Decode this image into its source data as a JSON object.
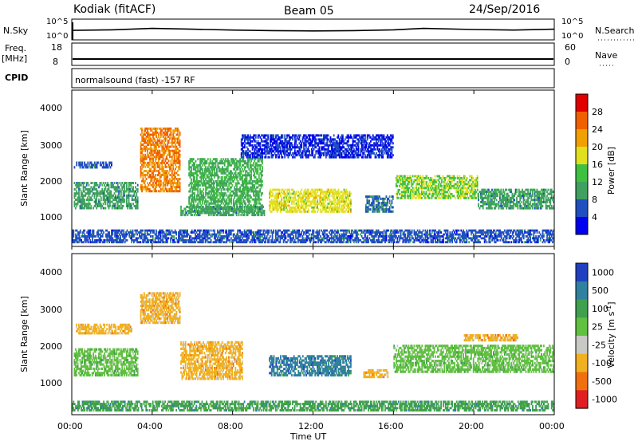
{
  "header": {
    "station": "Kodiak (fitACF)",
    "beam": "Beam 05",
    "date": "24/Sep/2016"
  },
  "nsky_panel": {
    "left_label": "N.Sky",
    "left_ticks": [
      "10^5",
      "10^0"
    ],
    "right_label": "N.Search",
    "right_ticks": [
      "10^5",
      "10^0"
    ]
  },
  "freq_panel": {
    "left_label_line1": "Freq.",
    "left_label_line2": "[MHz]",
    "left_ticks": [
      "18",
      "8"
    ],
    "right_label": "Nave",
    "right_ticks": [
      "60",
      "0"
    ]
  },
  "cpid_panel": {
    "label": "CPID",
    "program": "normalsound (fast) -157 RF"
  },
  "power_panel": {
    "ylabel": "Slant Range [km]",
    "y_ticks": [
      "4000",
      "3000",
      "2000",
      "1000"
    ],
    "colorbar_label": "Power [dB]",
    "colorbar_ticks": [
      "28",
      "24",
      "20",
      "16",
      "12",
      "8",
      "4"
    ],
    "colors": [
      "#0000f0",
      "#2050c0",
      "#40a060",
      "#40c040",
      "#e0e020",
      "#f0a000",
      "#f06000",
      "#e00000"
    ]
  },
  "velocity_panel": {
    "ylabel": "Slant Range [km]",
    "y_ticks": [
      "4000",
      "3000",
      "2000",
      "1000"
    ],
    "colorbar_label": "Velocity [m s",
    "colorbar_label_sup": "-1",
    "colorbar_label_end": "]",
    "colorbar_ticks": [
      "1000",
      "500",
      "100",
      "25",
      "-25",
      "-100",
      "-500",
      "-1000"
    ],
    "colors": [
      "#2040c0",
      "#3080a0",
      "#40a050",
      "#60c040",
      "#c8c8c4",
      "#f0b020",
      "#f07010",
      "#e02020"
    ]
  },
  "x_axis": {
    "ticks": [
      "00:00",
      "04:00",
      "08:00",
      "12:00",
      "16:00",
      "20:00",
      "00:00"
    ],
    "label": "Time UT"
  },
  "chart_data": {
    "type": "heatmap",
    "title": "Kodiak (fitACF)",
    "subtitle": "Beam 05",
    "date": "24/Sep/2016",
    "x_range_hours_ut": [
      0,
      24
    ],
    "y_range_km": [
      0,
      4600
    ],
    "panels": [
      {
        "name": "Power",
        "unit": "dB",
        "colorbar": [
          4,
          8,
          12,
          16,
          20,
          24,
          28
        ],
        "regions": [
          {
            "t": [
              0.1,
              3.3
            ],
            "r": [
              1100,
              1900
            ],
            "v": 12
          },
          {
            "t": [
              0.1,
              2.0
            ],
            "r": [
              2300,
              2500
            ],
            "v": 8
          },
          {
            "t": [
              3.4,
              5.4
            ],
            "r": [
              1600,
              3500
            ],
            "v": 26
          },
          {
            "t": [
              5.8,
              9.5
            ],
            "r": [
              1000,
              2600
            ],
            "v": 14
          },
          {
            "t": [
              5.4,
              9.6
            ],
            "r": [
              900,
              1200
            ],
            "v": 12
          },
          {
            "t": [
              9.8,
              13.9
            ],
            "r": [
              1000,
              1700
            ],
            "v": 20
          },
          {
            "t": [
              14.6,
              16.0
            ],
            "r": [
              1000,
              1500
            ],
            "v": 10
          },
          {
            "t": [
              16.1,
              20.2
            ],
            "r": [
              1400,
              2100
            ],
            "v": 18
          },
          {
            "t": [
              20.2,
              24.0
            ],
            "r": [
              1100,
              1700
            ],
            "v": 12
          },
          {
            "t": [
              8.4,
              16.0
            ],
            "r": [
              2600,
              3300
            ],
            "v": 6
          },
          {
            "t": [
              0.0,
              24.0
            ],
            "r": [
              100,
              500
            ],
            "v": 8
          }
        ]
      },
      {
        "name": "Velocity",
        "unit": "m s-1",
        "colorbar": [
          1000,
          500,
          100,
          25,
          -25,
          -100,
          -500,
          -1000
        ],
        "regions": [
          {
            "t": [
              0.1,
              3.3
            ],
            "r": [
              1100,
              1900
            ],
            "v": 0
          },
          {
            "t": [
              0.2,
              3.0
            ],
            "r": [
              2300,
              2600
            ],
            "v": -300
          },
          {
            "t": [
              3.4,
              5.4
            ],
            "r": [
              2600,
              3500
            ],
            "v": -400
          },
          {
            "t": [
              5.4,
              8.5
            ],
            "r": [
              1000,
              2100
            ],
            "v": -200
          },
          {
            "t": [
              9.8,
              13.9
            ],
            "r": [
              1100,
              1700
            ],
            "v": 150
          },
          {
            "t": [
              14.5,
              15.8
            ],
            "r": [
              1050,
              1300
            ],
            "v": -150
          },
          {
            "t": [
              16.0,
              24.0
            ],
            "r": [
              1200,
              2000
            ],
            "v": 0
          },
          {
            "t": [
              19.5,
              22.2
            ],
            "r": [
              2100,
              2300
            ],
            "v": -400
          },
          {
            "t": [
              0.0,
              24.0
            ],
            "r": [
              100,
              400
            ],
            "v": 50
          }
        ]
      }
    ],
    "nsky_trace": [
      [
        0,
        2.2
      ],
      [
        2,
        2.4
      ],
      [
        4,
        2.9
      ],
      [
        6,
        2.6
      ],
      [
        8,
        2.3
      ],
      [
        10,
        2.1
      ],
      [
        12,
        2.0
      ],
      [
        14,
        2.1
      ],
      [
        16,
        2.4
      ],
      [
        17.5,
        2.9
      ],
      [
        20,
        2.5
      ],
      [
        22,
        2.3
      ],
      [
        24,
        2.6
      ]
    ],
    "frequency_mhz": 10,
    "program": "normalsound (fast) -157 RF"
  }
}
